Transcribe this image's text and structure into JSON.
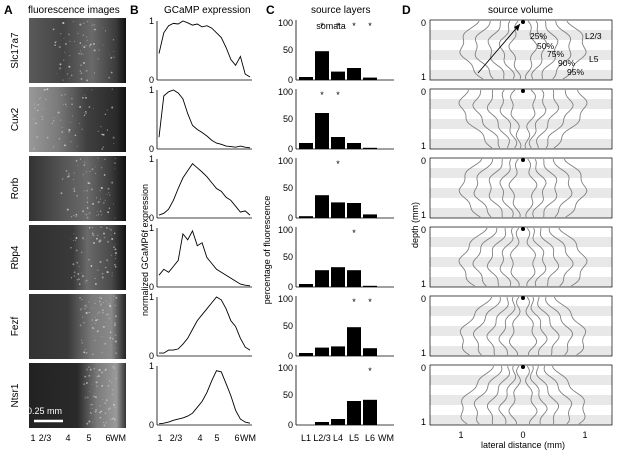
{
  "panels": {
    "A": {
      "label": "A",
      "title": "fluorescence images"
    },
    "B": {
      "label": "B",
      "title": "GCaMP expression"
    },
    "C": {
      "label": "C",
      "title": "source layers"
    },
    "D": {
      "label": "D",
      "title": "source volume"
    }
  },
  "lines": [
    "Slc17a7",
    "Cux2",
    "Rorb",
    "Rbp4",
    "Fezf",
    "Ntsr1"
  ],
  "image_scale_label": "0.25 mm",
  "image_depth_ticks": [
    "1",
    "2/3",
    "4",
    "5",
    "6",
    "WM"
  ],
  "B_ylabel": "normalized GCaMP6f expression",
  "B_yticks": [
    "0",
    "1"
  ],
  "B_xticks": [
    "1",
    "2/3",
    "4",
    "5",
    "6",
    "WM"
  ],
  "C_ylabel": "percentage of fluorescence",
  "C_yticks": [
    "0",
    "50",
    "100"
  ],
  "C_xticks": [
    "L1",
    "L2/3",
    "L4",
    "L5",
    "L6",
    "WM"
  ],
  "C_annotation": "somata",
  "C_significance_marker": "*",
  "D_ylabel": "depth (mm)",
  "D_xlabel": "lateral distance (mm)",
  "D_yticks": [
    "0",
    "1"
  ],
  "D_xticks": [
    "1",
    "0",
    "1"
  ],
  "D_layer_labels": [
    "L2/3",
    "L5"
  ],
  "D_contour_labels": [
    "25%",
    "50%",
    "75%",
    "90%",
    "95%"
  ],
  "colors": {
    "bar": "#000000",
    "contour": "#808080",
    "layer_band": "#e8e8e8"
  },
  "chart_data": [
    {
      "type": "line",
      "panel": "B",
      "x_category_ticks": [
        "1",
        "2/3",
        "4",
        "5",
        "6",
        "WM"
      ],
      "ylim": [
        0,
        1
      ],
      "series": [
        {
          "name": "Slc17a7",
          "values": [
            0.45,
            0.8,
            0.92,
            0.96,
            0.95,
            1.0,
            0.97,
            0.93,
            0.95,
            0.9,
            0.92,
            0.88,
            0.8,
            0.72,
            0.55,
            0.35,
            0.25,
            0.4,
            0.1,
            0.05
          ]
        },
        {
          "name": "Cux2",
          "values": [
            0.2,
            0.9,
            0.97,
            1.0,
            0.95,
            0.85,
            0.6,
            0.4,
            0.33,
            0.28,
            0.22,
            0.15,
            0.1,
            0.08,
            0.05,
            0.04,
            0.03,
            0.05,
            0.03,
            0.02
          ]
        },
        {
          "name": "Rorb",
          "values": [
            0.05,
            0.08,
            0.15,
            0.3,
            0.5,
            0.68,
            0.8,
            0.92,
            0.85,
            0.78,
            0.7,
            0.6,
            0.5,
            0.45,
            0.35,
            0.3,
            0.2,
            0.1,
            0.12,
            0.05
          ]
        },
        {
          "name": "Rbp4",
          "values": [
            0.2,
            0.3,
            0.25,
            0.35,
            0.45,
            0.9,
            0.8,
            0.95,
            0.7,
            0.75,
            0.5,
            0.4,
            0.3,
            0.25,
            0.2,
            0.15,
            0.1,
            0.05,
            0.03,
            0.02
          ]
        },
        {
          "name": "Fezf",
          "values": [
            0.05,
            0.05,
            0.1,
            0.1,
            0.12,
            0.2,
            0.3,
            0.45,
            0.6,
            0.7,
            0.8,
            0.9,
            1.0,
            0.95,
            0.8,
            0.6,
            0.5,
            0.3,
            0.15,
            0.1
          ]
        },
        {
          "name": "Ntsr1",
          "values": [
            0.02,
            0.03,
            0.05,
            0.08,
            0.1,
            0.12,
            0.15,
            0.2,
            0.3,
            0.4,
            0.55,
            0.75,
            0.92,
            0.9,
            0.7,
            0.5,
            0.25,
            0.1,
            0.05,
            0.03
          ]
        }
      ]
    },
    {
      "type": "bar",
      "panel": "C",
      "categories": [
        "L1",
        "L2/3",
        "L4",
        "L5",
        "L6",
        "WM"
      ],
      "ylim": [
        0,
        100
      ],
      "series": [
        {
          "name": "Slc17a7",
          "values": [
            5,
            48,
            14,
            20,
            4,
            0
          ],
          "significant": [
            false,
            true,
            true,
            true,
            true,
            false
          ]
        },
        {
          "name": "Cux2",
          "values": [
            10,
            60,
            20,
            10,
            2,
            0
          ],
          "significant": [
            false,
            true,
            true,
            false,
            false,
            false
          ]
        },
        {
          "name": "Rorb",
          "values": [
            3,
            38,
            26,
            25,
            6,
            0
          ],
          "significant": [
            false,
            false,
            true,
            false,
            false,
            false
          ]
        },
        {
          "name": "Rbp4",
          "values": [
            5,
            28,
            33,
            28,
            2,
            0
          ],
          "significant": [
            false,
            false,
            false,
            true,
            false,
            false
          ]
        },
        {
          "name": "Fezf",
          "values": [
            5,
            14,
            16,
            48,
            13,
            0
          ],
          "significant": [
            false,
            false,
            false,
            true,
            true,
            false
          ]
        },
        {
          "name": "Ntsr1",
          "values": [
            0,
            5,
            10,
            40,
            42,
            0
          ],
          "significant": [
            false,
            false,
            false,
            false,
            true,
            false
          ]
        }
      ]
    }
  ]
}
